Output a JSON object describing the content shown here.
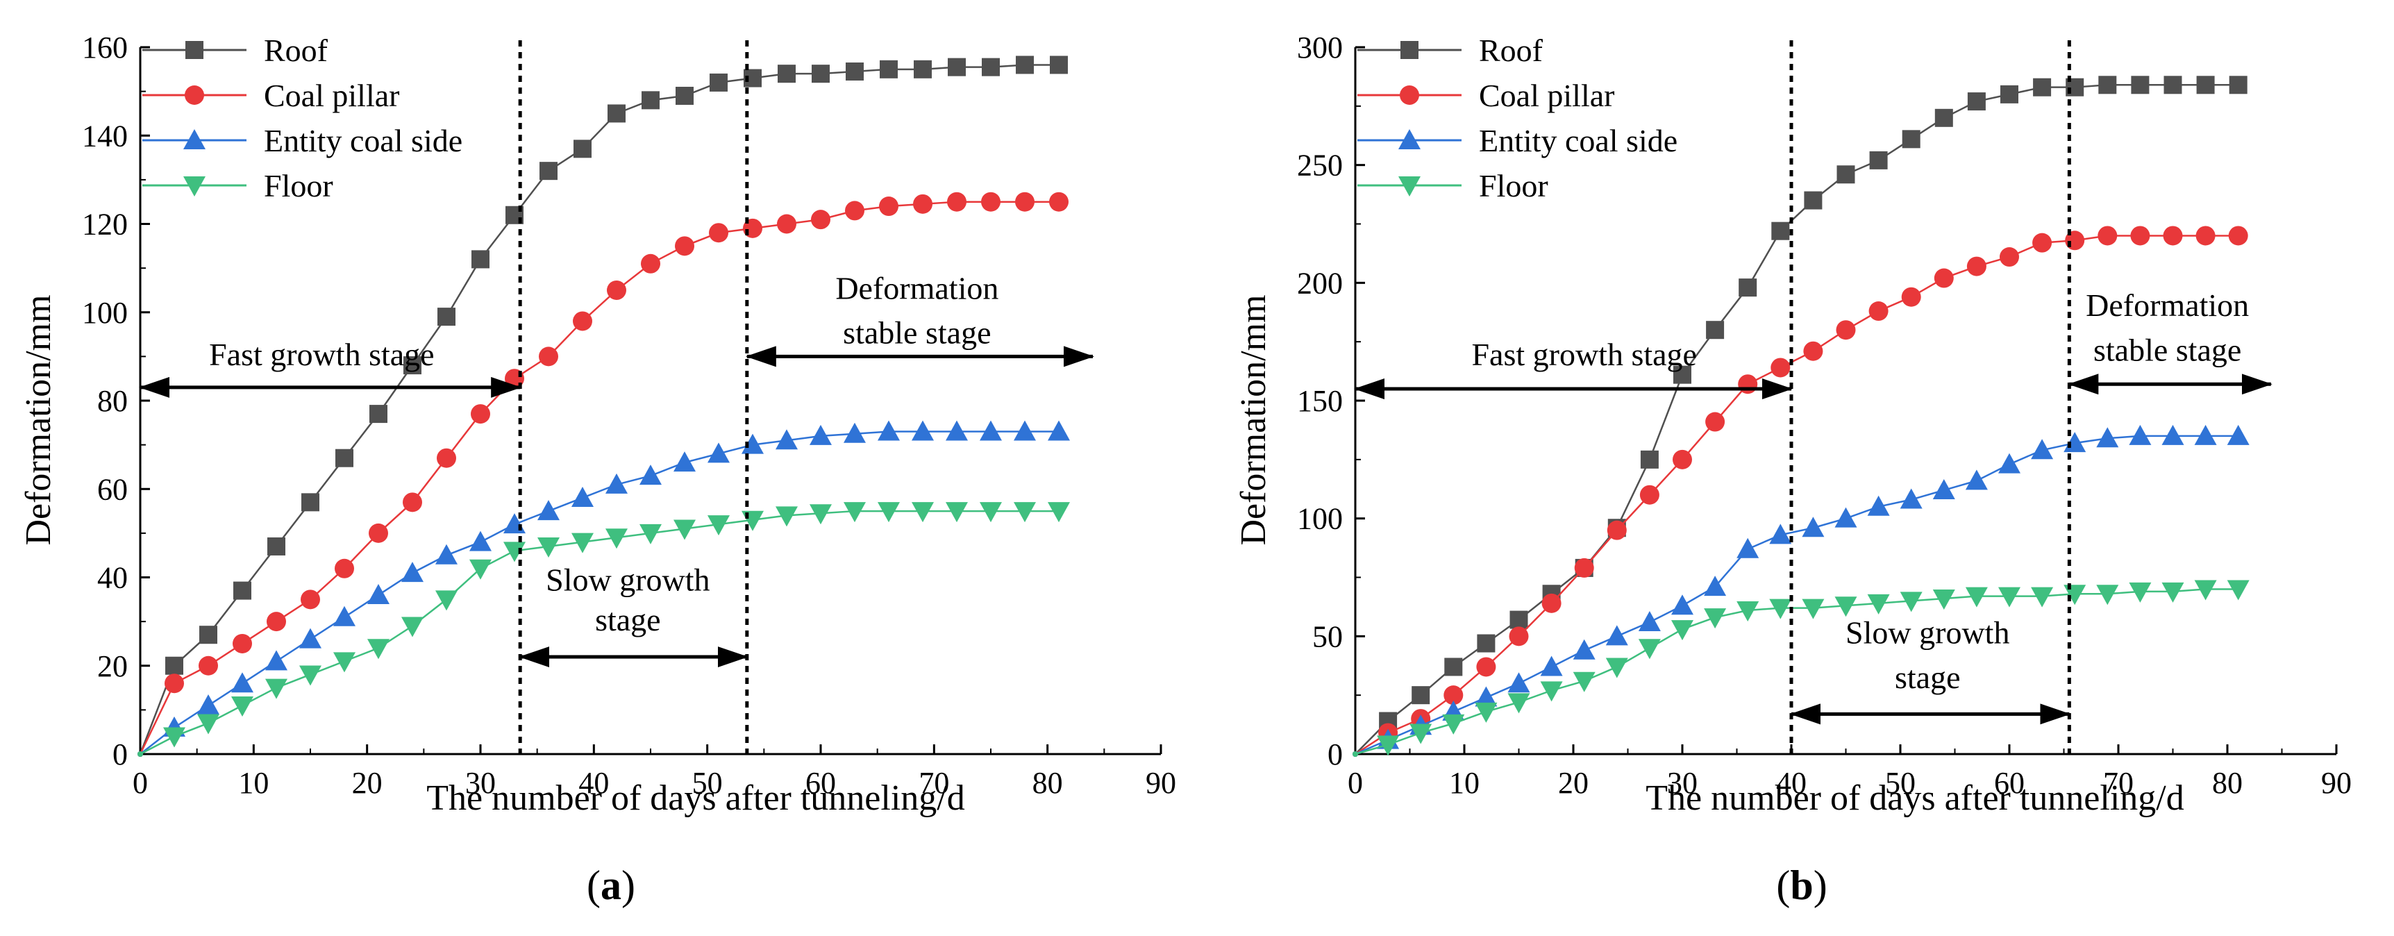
{
  "chart_data": [
    {
      "type": "line",
      "panel_label": "a",
      "xlabel": "The number of days after tunneling/d",
      "ylabel": "Deformation/mm",
      "xlim": [
        0,
        90
      ],
      "ylim": [
        0,
        160
      ],
      "xticks": [
        "0",
        "10",
        "20",
        "30",
        "40",
        "50",
        "60",
        "70",
        "80",
        "90"
      ],
      "yticks": [
        "0",
        "20",
        "40",
        "60",
        "80",
        "100",
        "120",
        "140",
        "160"
      ],
      "legend_position": "top-left",
      "x": [
        0,
        3,
        6,
        9,
        12,
        15,
        18,
        21,
        24,
        27,
        30,
        33,
        36,
        39,
        42,
        45,
        48,
        51,
        54,
        57,
        60,
        63,
        66,
        69,
        72,
        75,
        78,
        81
      ],
      "series": [
        {
          "name": "Roof",
          "color": "#505050",
          "marker": "square",
          "values": [
            0,
            20,
            27,
            37,
            47,
            57,
            67,
            77,
            88,
            99,
            112,
            122,
            132,
            137,
            145,
            148,
            149,
            152,
            153,
            154,
            154,
            154.5,
            155,
            155,
            155.5,
            155.5,
            156,
            156
          ]
        },
        {
          "name": "Coal pillar",
          "color": "#e8383a",
          "marker": "circle",
          "values": [
            0,
            16,
            20,
            25,
            30,
            35,
            42,
            50,
            57,
            67,
            77,
            85,
            90,
            98,
            105,
            111,
            115,
            118,
            119,
            120,
            121,
            123,
            124,
            124.5,
            125,
            125,
            125,
            125
          ]
        },
        {
          "name": "Entity coal side",
          "color": "#2f73d6",
          "marker": "triangle-up",
          "values": [
            0,
            6,
            11,
            16,
            21,
            26,
            31,
            36,
            41,
            45,
            48,
            52,
            55,
            58,
            61,
            63,
            66,
            68,
            70,
            71,
            72,
            72.5,
            73,
            73,
            73,
            73,
            73,
            73
          ]
        },
        {
          "name": "Floor",
          "color": "#3fbf7f",
          "marker": "triangle-down",
          "values": [
            0,
            4,
            7,
            11,
            15,
            18,
            21,
            24,
            29,
            35,
            42,
            46,
            47,
            48,
            49,
            50,
            51,
            52,
            53,
            54,
            54.5,
            55,
            55,
            55,
            55,
            55,
            55,
            55
          ]
        }
      ],
      "vlines": [
        33.5,
        53.5
      ],
      "annotations": {
        "fast": {
          "text": "Fast growth stage",
          "arrow_from": 0,
          "arrow_to": 33.5,
          "arrow_y": 83,
          "text_x": 16,
          "text_y": 88
        },
        "slow1": {
          "text": "Slow growth",
          "text_x": 43,
          "text_y": 37
        },
        "slow2": {
          "text": "stage",
          "text_x": 43,
          "text_y": 28
        },
        "slow_arrow": {
          "from": 33.5,
          "to": 53.5,
          "y": 22
        },
        "stable1": {
          "text": "Deformation",
          "text_x": 68.5,
          "text_y": 103
        },
        "stable2": {
          "text": "stable stage",
          "text_x": 68.5,
          "text_y": 93
        },
        "stable_arrow": {
          "from": 53.5,
          "to": 84,
          "y": 90
        }
      }
    },
    {
      "type": "line",
      "panel_label": "b",
      "xlabel": "The number of days after tunneling/d",
      "ylabel": "Deformation/mm",
      "xlim": [
        0,
        90
      ],
      "ylim": [
        0,
        300
      ],
      "xticks": [
        "0",
        "10",
        "20",
        "30",
        "40",
        "50",
        "60",
        "70",
        "80",
        "90"
      ],
      "yticks": [
        "0",
        "50",
        "100",
        "150",
        "200",
        "250",
        "300"
      ],
      "legend_position": "top-left",
      "x": [
        0,
        3,
        6,
        9,
        12,
        15,
        18,
        21,
        24,
        27,
        30,
        33,
        36,
        39,
        42,
        45,
        48,
        51,
        54,
        57,
        60,
        63,
        66,
        69,
        72,
        75,
        78,
        81
      ],
      "series": [
        {
          "name": "Roof",
          "color": "#505050",
          "marker": "square",
          "values": [
            0,
            14,
            25,
            37,
            47,
            57,
            68,
            79,
            96,
            125,
            161,
            180,
            198,
            222,
            235,
            246,
            252,
            261,
            270,
            277,
            280,
            283,
            283,
            284,
            284,
            284,
            284,
            284
          ]
        },
        {
          "name": "Coal pillar",
          "color": "#e8383a",
          "marker": "circle",
          "values": [
            0,
            9,
            15,
            25,
            37,
            50,
            64,
            79,
            95,
            110,
            125,
            141,
            157,
            164,
            171,
            180,
            188,
            194,
            202,
            207,
            211,
            217,
            218,
            220,
            220,
            220,
            220,
            220
          ]
        },
        {
          "name": "Entity coal side",
          "color": "#2f73d6",
          "marker": "triangle-up",
          "values": [
            0,
            6,
            12,
            18,
            24,
            30,
            37,
            44,
            50,
            56,
            63,
            71,
            87,
            93,
            96,
            100,
            105,
            108,
            112,
            116,
            123,
            129,
            132,
            134,
            135,
            135,
            135,
            135
          ]
        },
        {
          "name": "Floor",
          "color": "#3fbf7f",
          "marker": "triangle-down",
          "values": [
            0,
            4,
            9,
            13,
            18,
            22,
            27,
            31,
            37,
            45,
            53,
            58,
            61,
            62,
            62,
            63,
            64,
            65,
            66,
            67,
            67,
            67,
            68,
            68,
            69,
            69,
            70,
            70
          ]
        }
      ],
      "vlines": [
        40,
        65.5
      ],
      "annotations": {
        "fast": {
          "text": "Fast growth stage",
          "arrow_from": 0,
          "arrow_to": 40,
          "arrow_y": 155,
          "text_x": 21,
          "text_y": 165
        },
        "slow1": {
          "text": "Slow growth",
          "text_x": 52.5,
          "text_y": 47
        },
        "slow2": {
          "text": "stage",
          "text_x": 52.5,
          "text_y": 28
        },
        "slow_arrow": {
          "from": 40,
          "to": 65.5,
          "y": 17
        },
        "stable1": {
          "text": "Deformation",
          "text_x": 74.5,
          "text_y": 186
        },
        "stable2": {
          "text": "stable stage",
          "text_x": 74.5,
          "text_y": 167
        },
        "stable_arrow": {
          "from": 65.5,
          "to": 84,
          "y": 157
        }
      }
    }
  ]
}
